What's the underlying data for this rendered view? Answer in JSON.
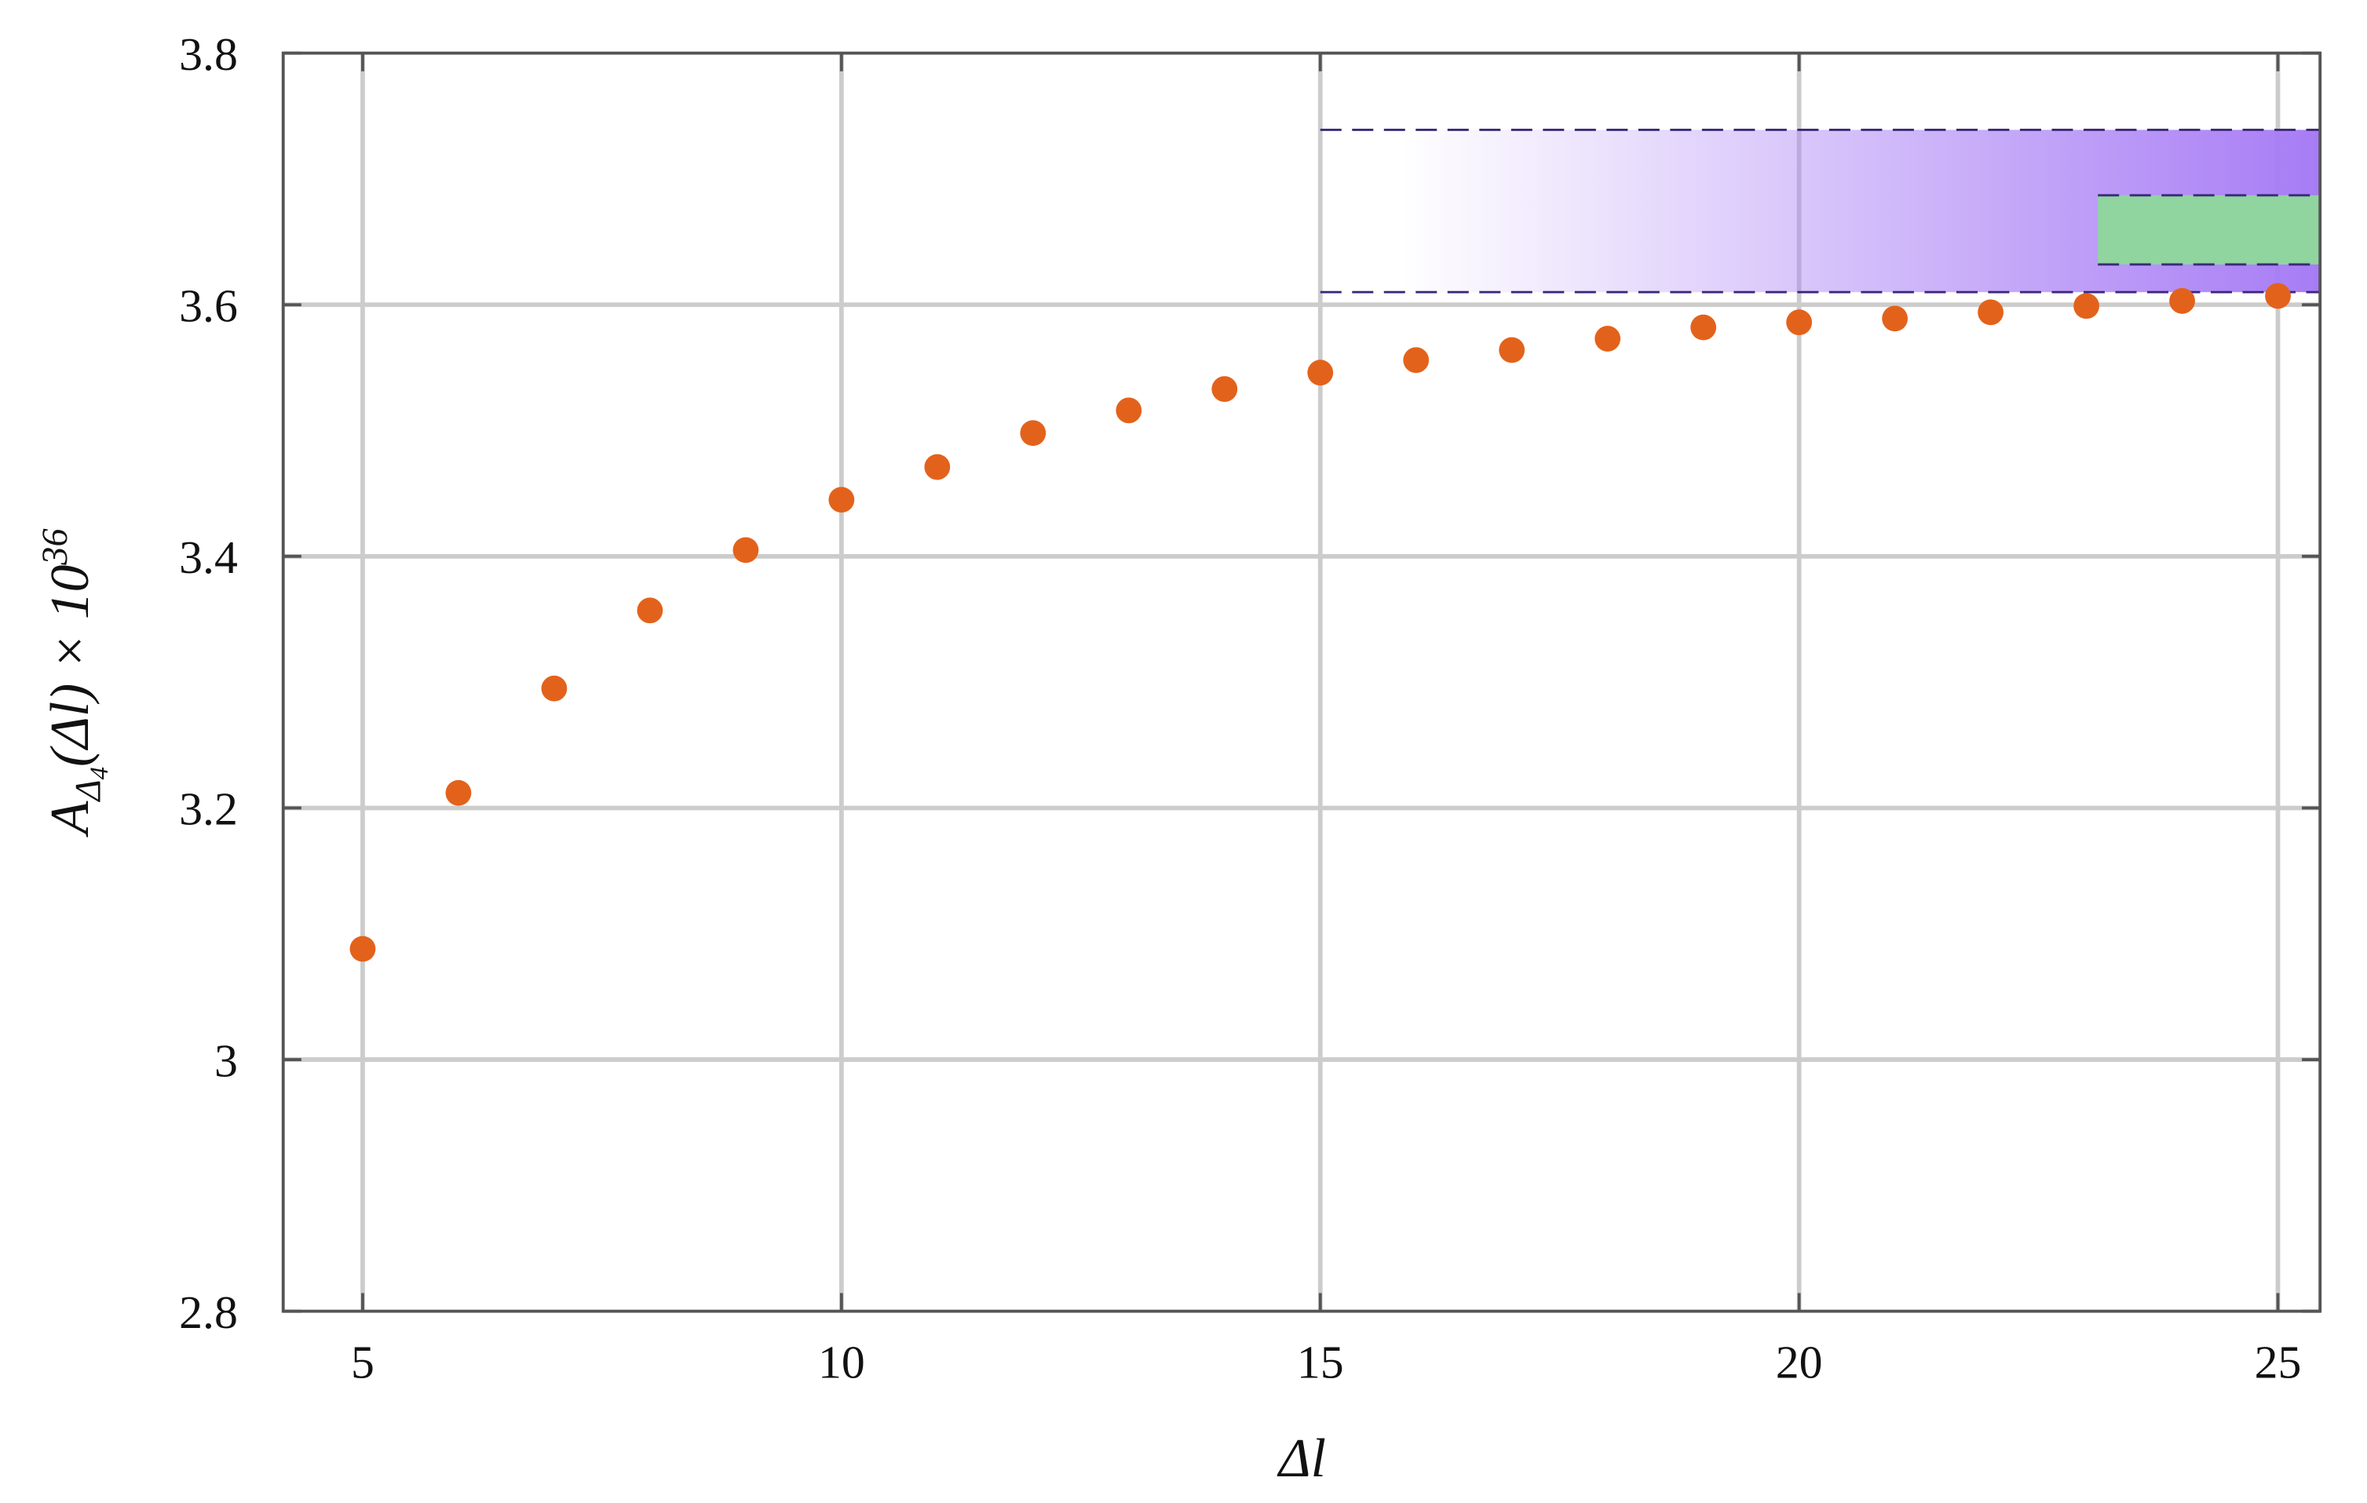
{
  "chart_data": {
    "type": "scatter",
    "xlabel": "Δl",
    "ylabel": {
      "base": "A",
      "sub": "Δ",
      "subsub": "4",
      "rest": "(Δl) × 10",
      "sup": "36"
    },
    "x": [
      5,
      6,
      7,
      8,
      9,
      10,
      11,
      12,
      13,
      14,
      15,
      16,
      17,
      18,
      19,
      20,
      21,
      22,
      23,
      24,
      25
    ],
    "values": [
      3.088,
      3.212,
      3.295,
      3.357,
      3.405,
      3.445,
      3.471,
      3.498,
      3.516,
      3.533,
      3.546,
      3.556,
      3.564,
      3.573,
      3.582,
      3.586,
      3.589,
      3.594,
      3.599,
      3.603,
      3.607
    ],
    "color": "#e3621b",
    "bands": [
      {
        "x0": 15,
        "y0": 3.61,
        "y1": 3.739,
        "color": "#a77cf5",
        "gradient": true
      },
      {
        "x0": 23.12,
        "y0": 3.632,
        "y1": 3.687,
        "color": "#90d4a0",
        "gradient": false
      }
    ],
    "xlim": [
      4.17,
      25.44
    ],
    "xticks": [
      5,
      10,
      15,
      20,
      25
    ],
    "ylim": [
      2.8,
      3.8
    ],
    "yticks": [
      2.8,
      3,
      3.2,
      3.4,
      3.6,
      3.8
    ],
    "grid": true
  }
}
